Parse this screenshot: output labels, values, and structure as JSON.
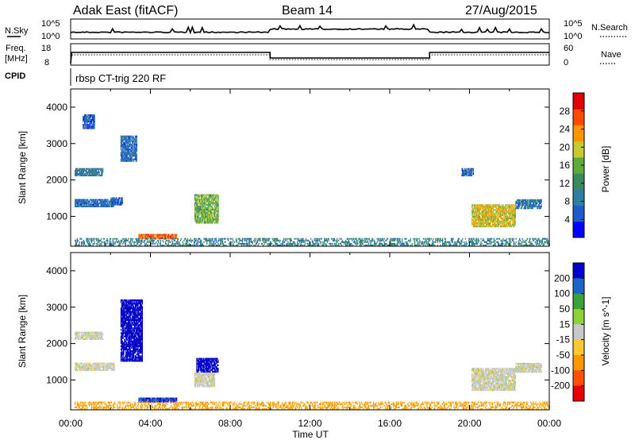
{
  "header": {
    "station": "Adak East (fitACF)",
    "beam": "Beam 14",
    "date": "27/Aug/2015"
  },
  "noise_panel": {
    "left_label": "N.Sky",
    "right_label": "N.Search",
    "left_ticks": [
      "10^5",
      "10^0"
    ],
    "right_ticks": [
      "10^5",
      "10^0"
    ]
  },
  "freq_panel": {
    "left_label_1": "Freq.",
    "left_label_2": "[MHz]",
    "right_label": "Nave",
    "left_ticks": [
      "18",
      "8"
    ],
    "right_ticks": [
      "60",
      "0"
    ]
  },
  "cpid": {
    "label": "CPID",
    "mode_text": "rbsp CT-trig 220 RF"
  },
  "colors": {
    "power_scale": [
      "#0000ff",
      "#1e5dc8",
      "#2e7fa0",
      "#3a8a60",
      "#5faa3c",
      "#c8c832",
      "#ff9600",
      "#ff4b00",
      "#e00000"
    ],
    "velocity_scale": [
      "#0000c8",
      "#1e64c8",
      "#3ca03c",
      "#8cd23c",
      "#c8c8c8",
      "#ffc832",
      "#ff9600",
      "#ff5000",
      "#e60000"
    ]
  },
  "chart_data": [
    {
      "type": "heatmap",
      "name": "power",
      "xlabel": "",
      "ylabel": "Slant Range [km]",
      "xlim": [
        "00:00",
        "24:00"
      ],
      "ylim": [
        180,
        4500
      ],
      "y_ticks": [
        1000,
        2000,
        3000,
        4000
      ],
      "colorbar": {
        "label": "Power [dB]",
        "ticks": [
          4,
          8,
          12,
          16,
          20,
          24,
          28
        ],
        "range": [
          0,
          32
        ]
      },
      "regions": [
        {
          "t": [
            3.4,
            5.3
          ],
          "r": [
            380,
            480
          ],
          "level": 26
        },
        {
          "t": [
            0.2,
            24.0
          ],
          "r": [
            180,
            400
          ],
          "level": 10
        },
        {
          "t": [
            0.2,
            1.6
          ],
          "r": [
            2100,
            2300
          ],
          "level": 9
        },
        {
          "t": [
            0.2,
            2.2
          ],
          "r": [
            1250,
            1450
          ],
          "level": 7
        },
        {
          "t": [
            2.0,
            2.6
          ],
          "r": [
            1300,
            1500
          ],
          "level": 6
        },
        {
          "t": [
            6.2,
            7.4
          ],
          "r": [
            800,
            1600
          ],
          "level": 16
        },
        {
          "t": [
            20.1,
            22.3
          ],
          "r": [
            700,
            1300
          ],
          "level": 20
        },
        {
          "t": [
            22.3,
            23.6
          ],
          "r": [
            1200,
            1450
          ],
          "level": 8
        },
        {
          "t": [
            19.6,
            20.2
          ],
          "r": [
            2100,
            2300
          ],
          "level": 6
        },
        {
          "t": [
            0.6,
            1.2
          ],
          "r": [
            3400,
            3800
          ],
          "level": 6
        },
        {
          "t": [
            2.5,
            3.3
          ],
          "r": [
            2500,
            3200
          ],
          "level": 7
        }
      ]
    },
    {
      "type": "heatmap",
      "name": "velocity",
      "xlabel": "Time UT",
      "ylabel": "Slant Range [km]",
      "xlim": [
        "00:00",
        "24:00"
      ],
      "ylim": [
        180,
        4500
      ],
      "x_ticks": [
        "00:00",
        "04:00",
        "08:00",
        "12:00",
        "16:00",
        "20:00",
        "00:00"
      ],
      "y_ticks": [
        1000,
        2000,
        3000,
        4000
      ],
      "colorbar": {
        "label": "Velocity [m s^-1]",
        "ticks": [
          200,
          100,
          50,
          15,
          -15,
          -50,
          -100,
          -200
        ]
      },
      "regions": [
        {
          "t": [
            3.4,
            5.3
          ],
          "r": [
            380,
            480
          ],
          "velocity": 150
        },
        {
          "t": [
            0.2,
            24.0
          ],
          "r": [
            180,
            400
          ],
          "velocity": -40
        },
        {
          "t": [
            0.2,
            1.6
          ],
          "r": [
            2100,
            2300
          ],
          "velocity": 0
        },
        {
          "t": [
            0.2,
            2.2
          ],
          "r": [
            1250,
            1450
          ],
          "velocity": 0
        },
        {
          "t": [
            2.5,
            3.6
          ],
          "r": [
            1500,
            3200
          ],
          "velocity": 200
        },
        {
          "t": [
            6.3,
            7.4
          ],
          "r": [
            1200,
            1600
          ],
          "velocity": 200
        },
        {
          "t": [
            6.2,
            7.2
          ],
          "r": [
            800,
            1200
          ],
          "velocity": 0
        },
        {
          "t": [
            20.1,
            22.3
          ],
          "r": [
            700,
            1300
          ],
          "velocity": 0
        },
        {
          "t": [
            22.3,
            23.6
          ],
          "r": [
            1200,
            1450
          ],
          "velocity": 0
        }
      ]
    }
  ]
}
